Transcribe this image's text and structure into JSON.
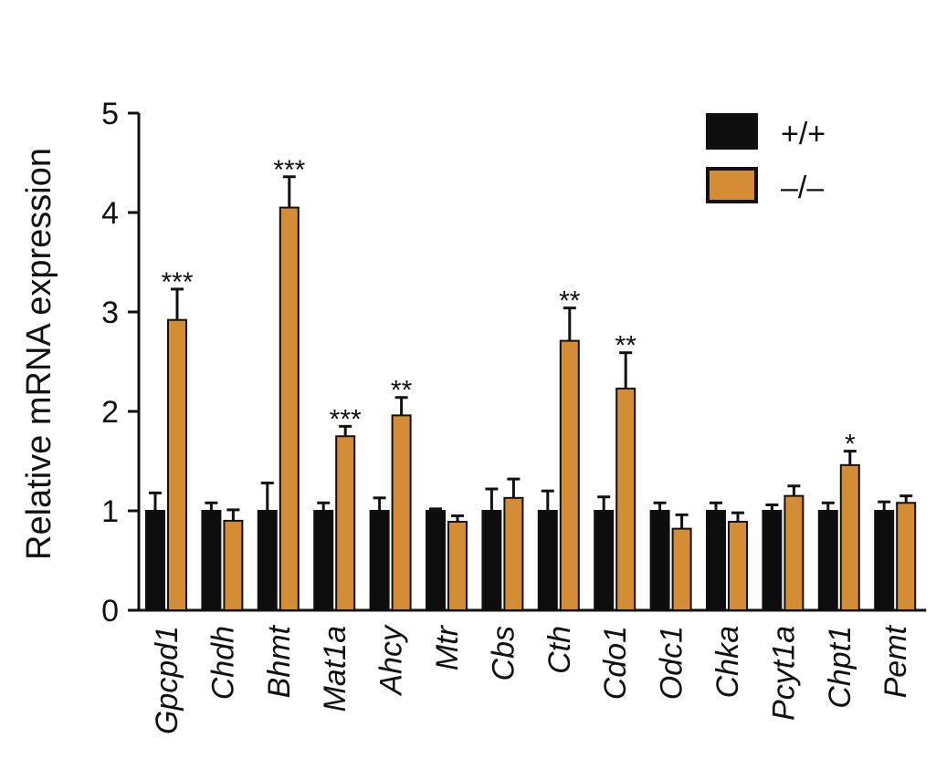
{
  "chart_data": {
    "type": "bar",
    "ylabel": "Relative mRNA expression",
    "xlabel": "",
    "ylim": [
      0,
      5
    ],
    "yticks": [
      0,
      1,
      2,
      3,
      4,
      5
    ],
    "legend_position": "top-right",
    "grid": false,
    "categories": [
      "Gpcpd1",
      "Chdh",
      "Bhmt",
      "Mat1a",
      "Ahcy",
      "Mtr",
      "Cbs",
      "Cth",
      "Cdo1",
      "Odc1",
      "Chka",
      "Pcyt1a",
      "Chpt1",
      "Pemt"
    ],
    "series": [
      {
        "name": "+/+",
        "color": "#0d0d0d",
        "values": [
          1.0,
          1.0,
          1.0,
          1.0,
          1.0,
          1.0,
          1.0,
          1.0,
          1.0,
          1.0,
          1.0,
          1.0,
          1.0,
          1.0
        ],
        "errors": [
          0.18,
          0.08,
          0.28,
          0.08,
          0.13,
          0.02,
          0.22,
          0.2,
          0.14,
          0.08,
          0.08,
          0.06,
          0.08,
          0.09
        ]
      },
      {
        "name": "–/–",
        "color": "#d48c35",
        "values": [
          2.92,
          0.9,
          4.05,
          1.75,
          1.96,
          0.89,
          1.13,
          2.71,
          2.23,
          0.82,
          0.89,
          1.15,
          1.46,
          1.08
        ],
        "errors": [
          0.31,
          0.11,
          0.31,
          0.1,
          0.18,
          0.06,
          0.19,
          0.33,
          0.36,
          0.14,
          0.09,
          0.1,
          0.14,
          0.07
        ]
      }
    ],
    "significance": [
      "***",
      "",
      "***",
      "***",
      "**",
      "",
      "",
      "**",
      "**",
      "",
      "",
      "",
      "*",
      ""
    ]
  }
}
